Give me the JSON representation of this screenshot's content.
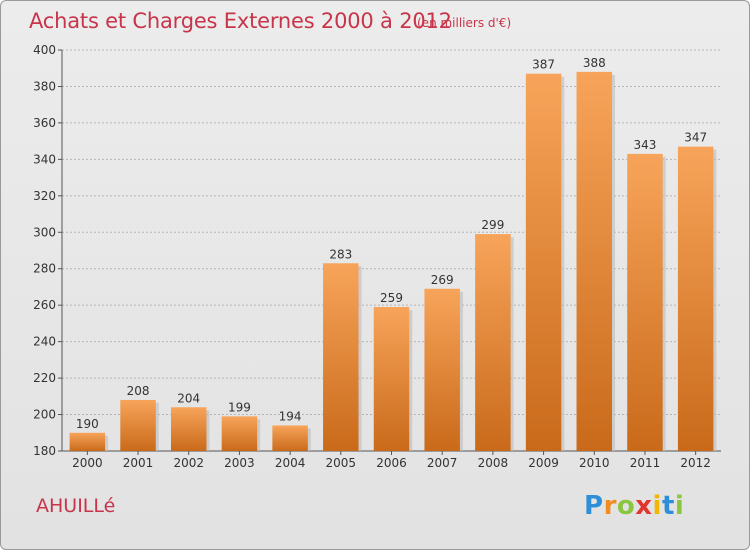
{
  "chart_data": {
    "type": "bar",
    "title": "Achats et Charges Externes 2000 à 2012",
    "subtitle": "(en milliers d'€)",
    "categories": [
      "2000",
      "2001",
      "2002",
      "2003",
      "2004",
      "2005",
      "2006",
      "2007",
      "2008",
      "2009",
      "2010",
      "2011",
      "2012"
    ],
    "values": [
      190,
      208,
      204,
      199,
      194,
      283,
      259,
      269,
      299,
      387,
      388,
      343,
      347
    ],
    "ylim": [
      180,
      400
    ],
    "yticks": [
      180,
      200,
      220,
      240,
      260,
      280,
      300,
      320,
      340,
      360,
      380,
      400
    ],
    "grid": true,
    "colors": {
      "bar_top": "#f7a45a",
      "bar_bottom": "#c96a1a",
      "title": "#c8354a"
    }
  },
  "footer": {
    "place": "AHUILLé",
    "logo": "Proxiti"
  }
}
